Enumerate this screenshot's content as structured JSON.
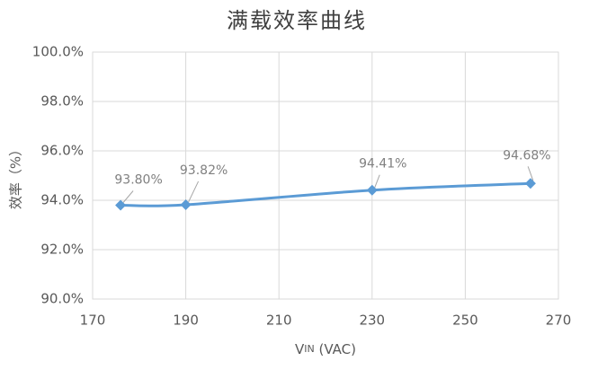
{
  "chart_data": {
    "type": "line",
    "title": "满载效率曲线",
    "x_label": {
      "main": "V",
      "sub": "IN",
      "rest": " (VAC)"
    },
    "y_label": "效率（%）",
    "x": [
      176,
      190,
      230,
      264
    ],
    "series": [
      {
        "color": "#5b9bd5",
        "values": [
          93.8,
          93.82,
          94.41,
          94.68
        ],
        "value_labels": [
          "93.80%",
          "93.82%",
          "94.41%",
          "94.68%"
        ]
      }
    ],
    "xlim": [
      170,
      270
    ],
    "xticks": [
      170,
      190,
      210,
      230,
      250,
      270
    ],
    "ylim": [
      90,
      100
    ],
    "yticks": [
      {
        "value": 90,
        "label": "90.0%"
      },
      {
        "value": 92,
        "label": "92.0%"
      },
      {
        "value": 94,
        "label": "94.0%"
      },
      {
        "value": 96,
        "label": "96.0%"
      },
      {
        "value": 98,
        "label": "98.0%"
      },
      {
        "value": 100,
        "label": "100.0%"
      }
    ],
    "grid": true,
    "smooth": true
  }
}
